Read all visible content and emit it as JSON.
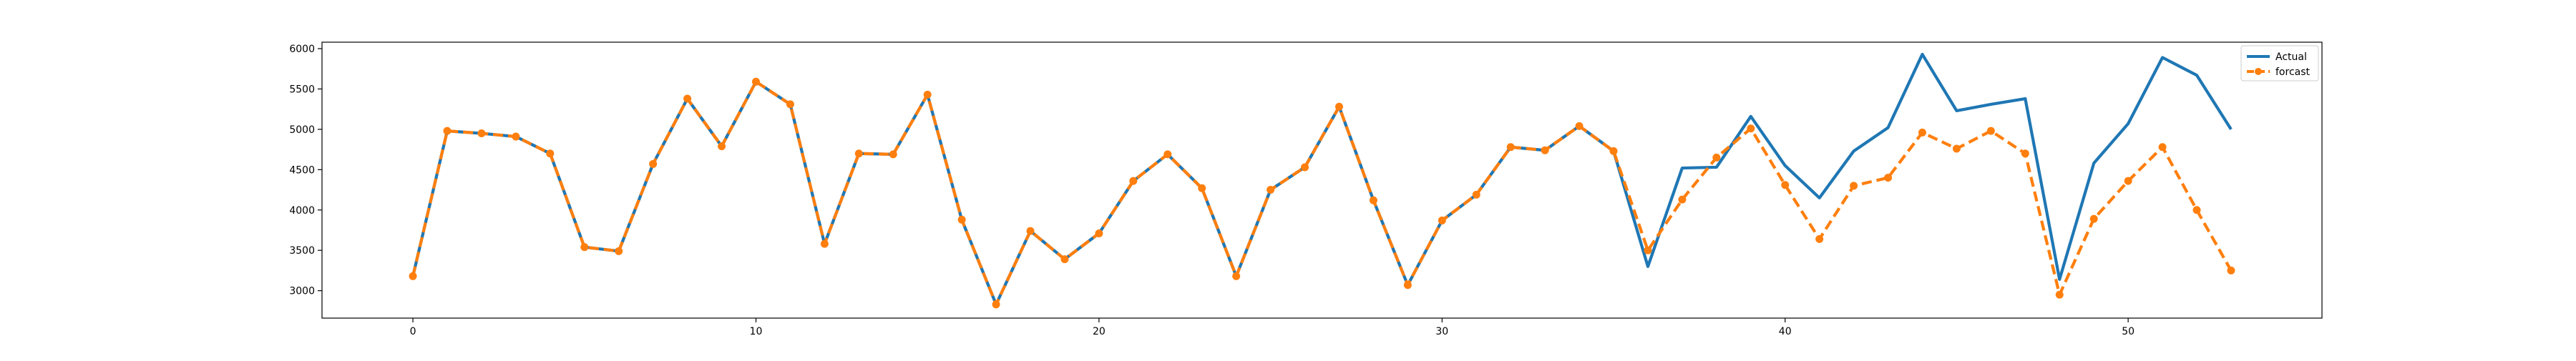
{
  "chart_data": {
    "type": "line",
    "title": "",
    "xlabel": "",
    "ylabel": "",
    "x": [
      0,
      1,
      2,
      3,
      4,
      5,
      6,
      7,
      8,
      9,
      10,
      11,
      12,
      13,
      14,
      15,
      16,
      17,
      18,
      19,
      20,
      21,
      22,
      23,
      24,
      25,
      26,
      27,
      28,
      29,
      30,
      31,
      32,
      33,
      34,
      35,
      36,
      37,
      38,
      39,
      40,
      41,
      42,
      43,
      44,
      45,
      46,
      47,
      48,
      49,
      50,
      51,
      52,
      53
    ],
    "xlim": [
      -2.65,
      55.65
    ],
    "ylim": [
      2660,
      6080
    ],
    "xticks": [
      0,
      10,
      20,
      30,
      40,
      50
    ],
    "yticks": [
      3000,
      3500,
      4000,
      4500,
      5000,
      5500,
      6000
    ],
    "grid": false,
    "legend_position": "top-right",
    "series": [
      {
        "name": "Actual",
        "color": "#1f77b4",
        "style": "solid",
        "values": [
          3180,
          4980,
          4950,
          4910,
          4700,
          3540,
          3490,
          4570,
          5380,
          4790,
          5590,
          5310,
          3580,
          4700,
          4690,
          5430,
          3880,
          2830,
          3740,
          3390,
          3710,
          4360,
          4690,
          4270,
          3180,
          4250,
          4530,
          5280,
          4120,
          3070,
          3870,
          4190,
          4780,
          4740,
          5040,
          4730,
          3300,
          4520,
          4530,
          5160,
          4550,
          4150,
          4730,
          5020,
          5930,
          5230,
          5310,
          5380,
          3140,
          4580,
          5070,
          5890,
          5670,
          5000
        ]
      },
      {
        "name": "forcast",
        "color": "#ff7f0e",
        "style": "dashed",
        "marker": "circle",
        "values": [
          3180,
          4980,
          4950,
          4910,
          4700,
          3540,
          3490,
          4570,
          5380,
          4790,
          5590,
          5310,
          3580,
          4700,
          4690,
          5430,
          3880,
          2830,
          3740,
          3390,
          3710,
          4360,
          4690,
          4270,
          3180,
          4250,
          4530,
          5280,
          4120,
          3070,
          3870,
          4190,
          4780,
          4740,
          5040,
          4730,
          3500,
          4130,
          4650,
          5010,
          4310,
          3640,
          4300,
          4400,
          4960,
          4760,
          4980,
          4700,
          2950,
          3890,
          4360,
          4780,
          4000,
          3250
        ]
      }
    ]
  }
}
